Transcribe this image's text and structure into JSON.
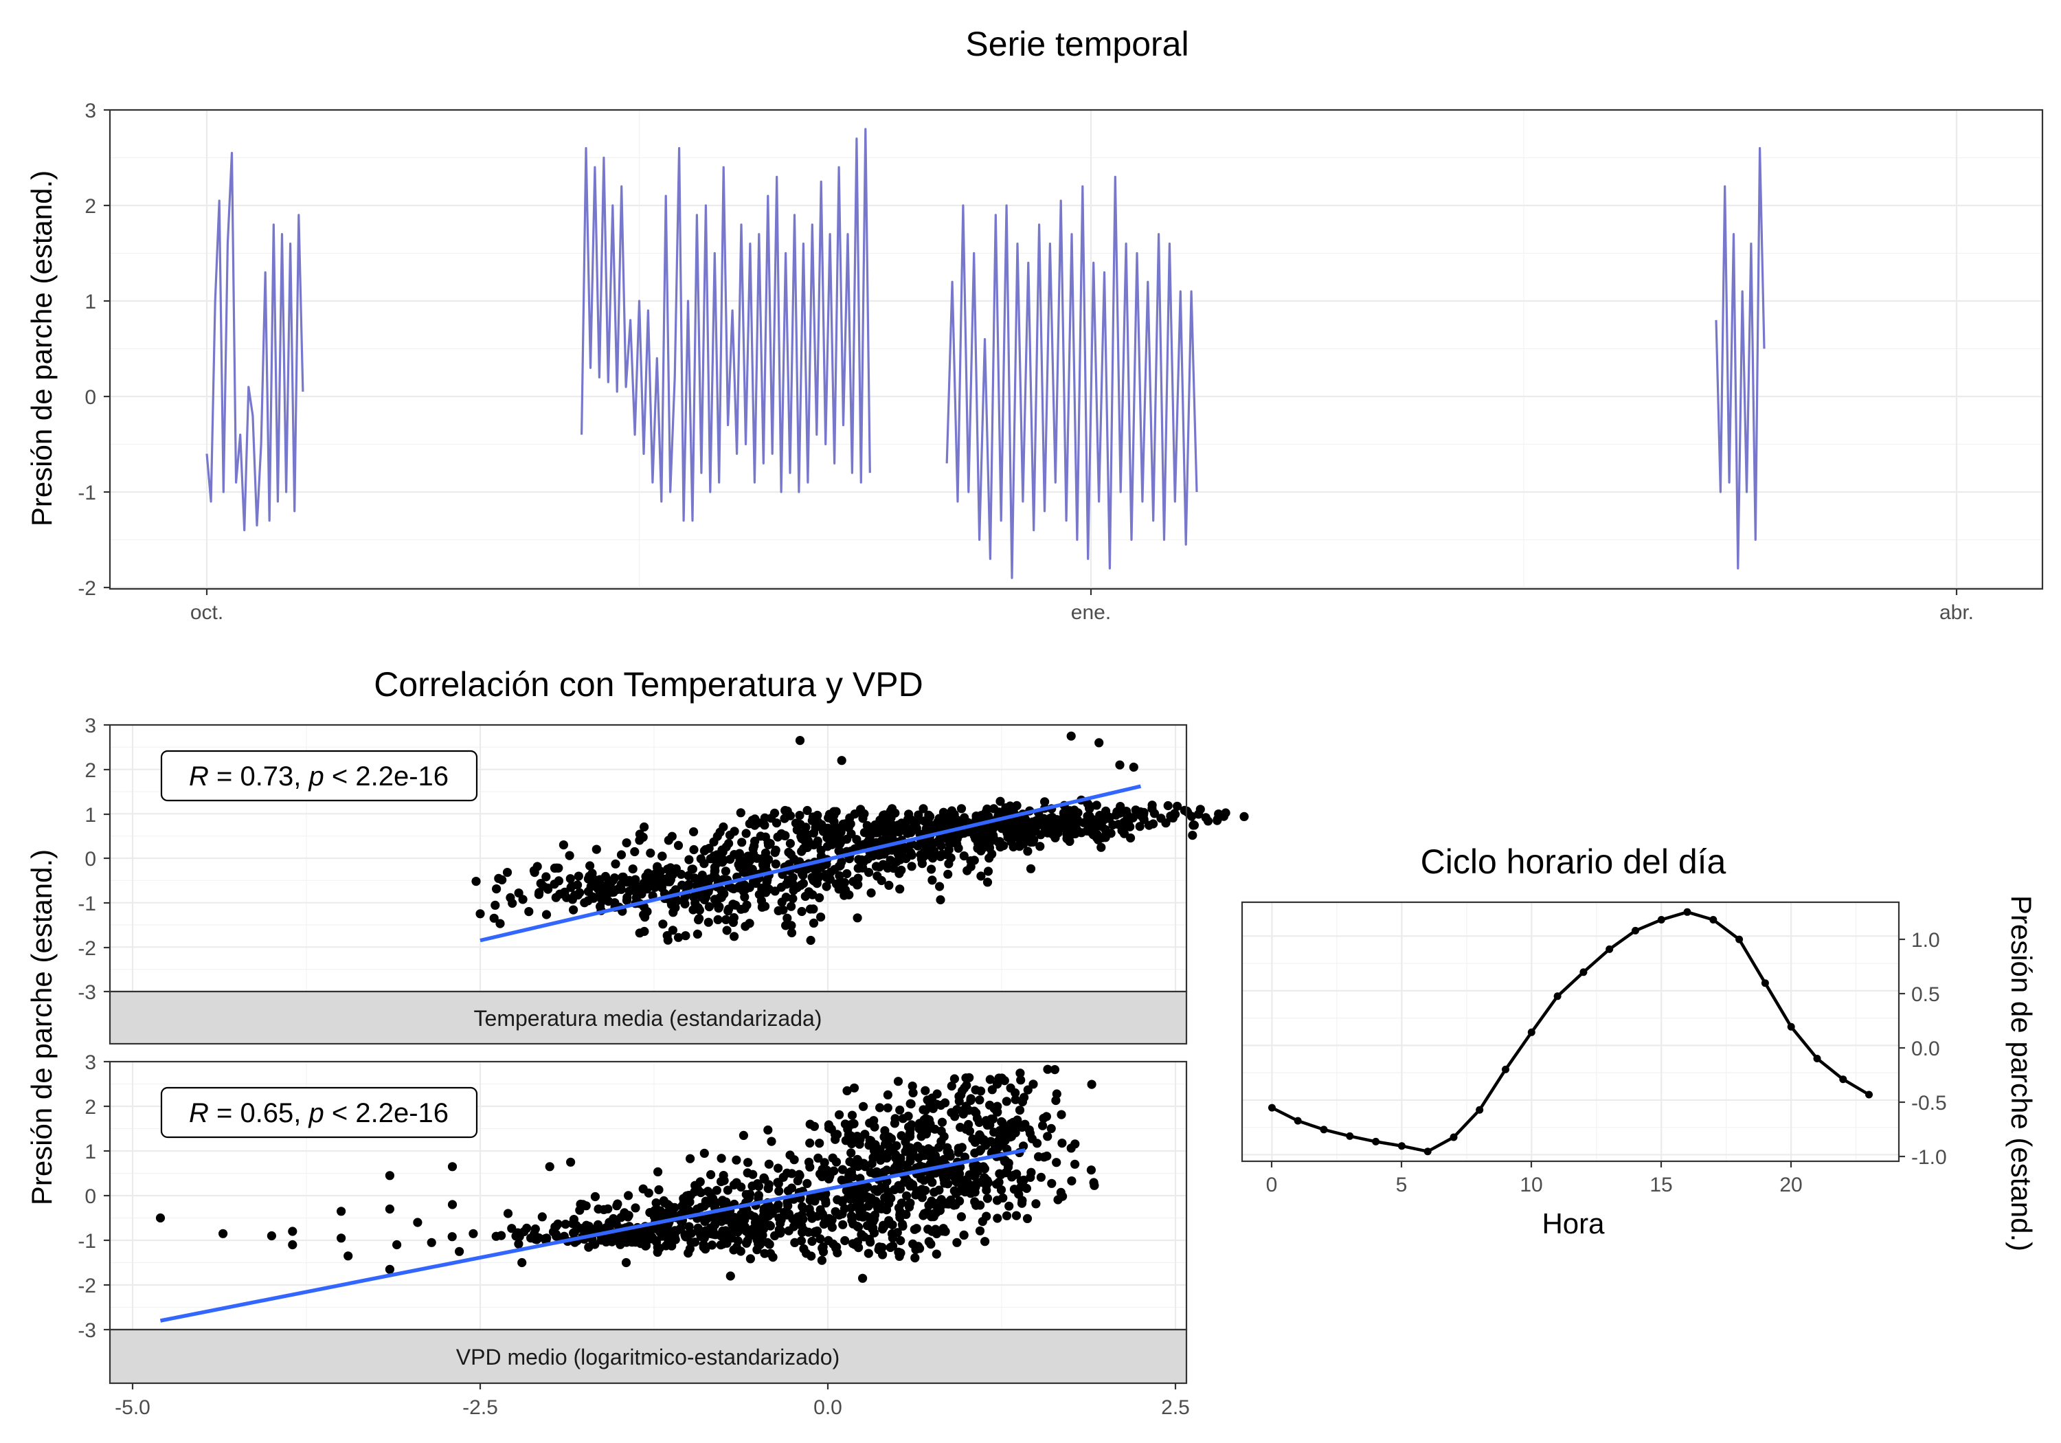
{
  "chart_data": [
    {
      "type": "line",
      "title": "Serie temporal",
      "xlabel": "",
      "ylabel": "Presión de parche (estand.)",
      "x_ticks": [
        "oct.",
        "ene.",
        "abr."
      ],
      "ylim": [
        -2,
        3
      ],
      "y_ticks": [
        "-2",
        "-1",
        "0",
        "1",
        "2",
        "3"
      ],
      "line_color": "#7777cc",
      "segments": [
        {
          "start": "2020-10-01",
          "end": "2020-10-11",
          "values": [
            -0.6,
            -1.1,
            1.0,
            2.05,
            -1.0,
            1.6,
            2.55,
            -0.9,
            -0.4,
            -1.4,
            0.1,
            -0.2,
            -1.35,
            -0.5,
            1.3,
            -1.3,
            1.8,
            -1.1,
            1.7,
            -1.0,
            1.6,
            -1.2,
            1.9,
            0.05
          ]
        },
        {
          "start": "2020-11-09",
          "end": "2020-12-09",
          "values": [
            -0.4,
            2.6,
            0.3,
            2.4,
            0.2,
            2.5,
            0.15,
            2.0,
            0.05,
            2.2,
            0.1,
            0.8,
            -0.4,
            1.0,
            -0.6,
            0.9,
            -0.9,
            0.4,
            -1.1,
            2.1,
            -1.0,
            0.2,
            2.6,
            -1.3,
            1.0,
            -1.3,
            1.9,
            -0.8,
            2.0,
            -1.0,
            1.5,
            -0.9,
            2.4,
            -0.3,
            0.9,
            -0.6,
            1.8,
            -0.5,
            1.6,
            -0.9,
            1.7,
            -0.7,
            2.1,
            -0.6,
            2.3,
            -1.0,
            1.5,
            -0.8,
            1.9,
            -1.0,
            1.6,
            -0.9,
            1.8,
            -0.4,
            2.25,
            -0.5,
            1.7,
            -0.7,
            2.4,
            -0.3,
            1.7,
            -0.8,
            2.7,
            -0.9,
            2.8,
            -0.8
          ]
        },
        {
          "start": "2020-12-17",
          "end": "2021-01-12",
          "values": [
            -0.7,
            1.2,
            -1.1,
            2.0,
            -1.0,
            1.5,
            -1.5,
            0.6,
            -1.7,
            1.9,
            -1.3,
            2.0,
            -1.9,
            1.6,
            -1.1,
            1.4,
            -1.4,
            1.8,
            -1.2,
            1.6,
            -0.9,
            2.05,
            -1.3,
            1.7,
            -1.5,
            2.2,
            -1.7,
            1.4,
            -1.1,
            1.3,
            -1.8,
            2.3,
            -1.0,
            1.6,
            -1.5,
            1.5,
            -1.1,
            1.2,
            -1.3,
            1.7,
            -1.5,
            1.6,
            -1.1,
            1.1,
            -1.55,
            1.1,
            -1.0
          ]
        },
        {
          "start": "2021-03-07",
          "end": "2021-03-12",
          "values": [
            0.8,
            -1.0,
            2.2,
            -0.9,
            1.7,
            -1.8,
            1.1,
            -1.0,
            1.6,
            -1.5,
            2.6,
            0.5
          ]
        }
      ]
    },
    {
      "type": "scatter",
      "title": "Correlación con Temperatura y VPD",
      "ylabel": "Presión de parche (estand.)",
      "ylim": [
        -3,
        3
      ],
      "y_ticks": [
        "-3",
        "-2",
        "-1",
        "0",
        "1",
        "2",
        "3"
      ],
      "xlim": [
        -5.0,
        2.5
      ],
      "x_ticks": [
        "-5.0",
        "-2.5",
        "0.0",
        "2.5"
      ],
      "point_color": "#000000",
      "fit_color": "#3366ff",
      "facets": [
        {
          "strip_label": "Temperatura media (estandarizada)",
          "annotation": {
            "r": "R",
            "r_value": " = 0.73, ",
            "p": "p",
            "p_value": " < 2.2e-16"
          },
          "fit": {
            "x": [
              -2.5,
              2.25
            ],
            "y": [
              -1.85,
              1.62
            ]
          },
          "cloud": [
            [
              -1.5,
              -1.0,
              -0.3,
              0.5
            ],
            [
              -1.0,
              -1.8,
              0.3,
              0.4
            ],
            [
              -0.5,
              -1.3,
              1.0,
              0.4
            ],
            [
              0.0,
              -0.8,
              1.0,
              0.45
            ],
            [
              0.5,
              -0.3,
              1.0,
              0.45
            ],
            [
              1.0,
              0.2,
              0.95,
              0.45
            ],
            [
              1.5,
              0.6,
              0.85,
              0.45
            ],
            [
              1.9,
              1.1,
              0.7,
              0.5
            ]
          ],
          "extra_points": [
            [
              -2.5,
              -1.25
            ],
            [
              -2.4,
              -1.35
            ],
            [
              -2.15,
              -1.2
            ],
            [
              -1.9,
              0.3
            ],
            [
              -1.75,
              -1.0
            ],
            [
              -0.2,
              2.65
            ],
            [
              0.1,
              2.2
            ],
            [
              1.75,
              2.75
            ],
            [
              1.95,
              2.6
            ],
            [
              2.1,
              2.1
            ],
            [
              2.2,
              2.05
            ],
            [
              2.05,
              0.75
            ],
            [
              1.6,
              0.9
            ]
          ]
        },
        {
          "strip_label": "VPD medio (logaritmico-estandarizado)",
          "annotation": {
            "r": "R",
            "r_value": " = 0.65, ",
            "p": "p",
            "p_value": " < 2.2e-16"
          },
          "fit": {
            "x": [
              -4.8,
              1.42
            ],
            "y": [
              -2.8,
              1.02
            ]
          },
          "cloud": [
            [
              -1.5,
              -1.0,
              -0.8,
              0.4
            ],
            [
              -1.0,
              -1.0,
              -0.1,
              0.45
            ],
            [
              -0.5,
              -1.2,
              0.4,
              0.5
            ],
            [
              0.0,
              -1.3,
              0.9,
              0.5
            ],
            [
              0.3,
              -1.3,
              1.5,
              0.4
            ],
            [
              0.6,
              -1.0,
              2.1,
              0.35
            ],
            [
              0.9,
              -0.5,
              2.5,
              0.35
            ],
            [
              1.2,
              -0.2,
              2.7,
              0.3
            ]
          ],
          "extra_points": [
            [
              -4.8,
              -0.5
            ],
            [
              -4.35,
              -0.85
            ],
            [
              -4.0,
              -0.9
            ],
            [
              -3.85,
              -0.8
            ],
            [
              -3.85,
              -1.1
            ],
            [
              -3.5,
              -0.35
            ],
            [
              -3.5,
              -0.95
            ],
            [
              -3.45,
              -1.35
            ],
            [
              -3.15,
              0.45
            ],
            [
              -3.15,
              -0.3
            ],
            [
              -3.15,
              -1.65
            ],
            [
              -3.1,
              -1.1
            ],
            [
              -2.95,
              -0.6
            ],
            [
              -2.85,
              -1.05
            ],
            [
              -2.7,
              -0.2
            ],
            [
              -2.65,
              -1.25
            ],
            [
              -2.55,
              -0.85
            ],
            [
              -2.7,
              0.65
            ],
            [
              -2.3,
              -0.4
            ],
            [
              -2.2,
              -1.5
            ],
            [
              -2.0,
              0.65
            ],
            [
              -1.85,
              0.75
            ],
            [
              -1.65,
              -0.3
            ],
            [
              -1.45,
              -1.5
            ],
            [
              -0.7,
              -1.8
            ],
            [
              0.25,
              -1.85
            ],
            [
              1.35,
              2.15
            ],
            [
              1.4,
              2.1
            ]
          ]
        }
      ]
    },
    {
      "type": "line",
      "title": "Ciclo horario del día",
      "xlabel": "Hora",
      "ylabel": "Presión de parche (estand.)",
      "xlim": [
        -1.15,
        24.15
      ],
      "ylim": [
        -1.06,
        1.31
      ],
      "x_ticks": [
        "0",
        "5",
        "10",
        "15",
        "20"
      ],
      "y_ticks": [
        "-1.0",
        "-0.5",
        "0.0",
        "0.5",
        "1.0"
      ],
      "x": [
        0,
        1,
        2,
        3,
        4,
        5,
        6,
        7,
        8,
        9,
        10,
        11,
        12,
        13,
        14,
        15,
        16,
        17,
        18,
        19,
        20,
        21,
        22,
        23
      ],
      "y": [
        -0.57,
        -0.69,
        -0.77,
        -0.83,
        -0.88,
        -0.92,
        -0.97,
        -0.84,
        -0.59,
        -0.22,
        0.12,
        0.45,
        0.67,
        0.88,
        1.05,
        1.15,
        1.22,
        1.15,
        0.97,
        0.57,
        0.17,
        -0.12,
        -0.31,
        -0.45
      ]
    }
  ]
}
